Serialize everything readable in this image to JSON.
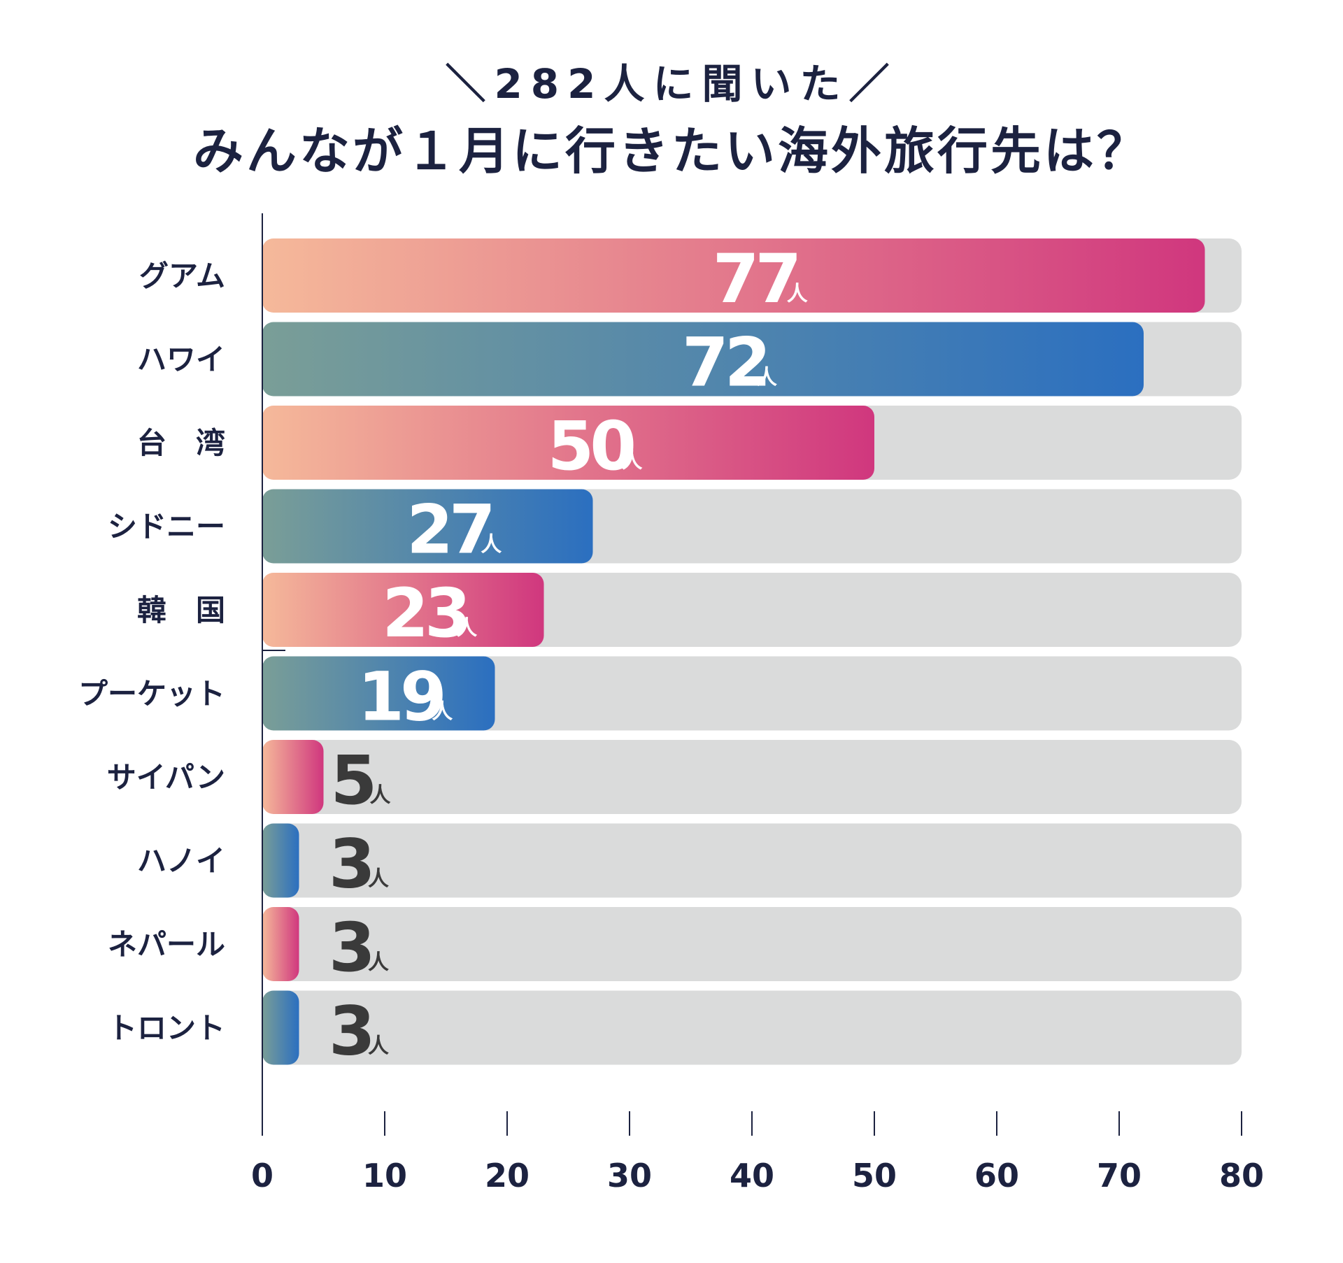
{
  "header": {
    "subtitle": "＼282人に聞いた／",
    "title": "みんなが１月に行きたい海外旅行先は？"
  },
  "chart_data": {
    "type": "bar",
    "orientation": "horizontal",
    "title": "みんなが１月に行きたい海外旅行先は？",
    "subtitle": "＼282人に聞いた／",
    "unit": "人",
    "categories": [
      "グアム",
      "ハワイ",
      "台　湾",
      "シドニー",
      "韓　国",
      "プーケット",
      "サイパン",
      "ハノイ",
      "ネパール",
      "トロント"
    ],
    "values": [
      77,
      72,
      50,
      27,
      23,
      19,
      5,
      3,
      3,
      3
    ],
    "bar_styles": [
      "pink",
      "blue",
      "pink",
      "blue",
      "pink",
      "blue",
      "pink",
      "blue",
      "pink",
      "blue"
    ],
    "xlim": [
      0,
      80
    ],
    "xticks": [
      0,
      10,
      20,
      30,
      40,
      50,
      60,
      70,
      80
    ],
    "xlabel": "",
    "ylabel": "",
    "grid": false,
    "legend": "none"
  },
  "colors": {
    "text": "#1c2240",
    "track": "#dadbdb",
    "pink_start": "#f5b99a",
    "pink_end": "#d0377e",
    "blue_start": "#7a9e97",
    "blue_end": "#2b6fc0",
    "value_inside": "#ffffff",
    "value_outside": "#3a3a3a"
  }
}
